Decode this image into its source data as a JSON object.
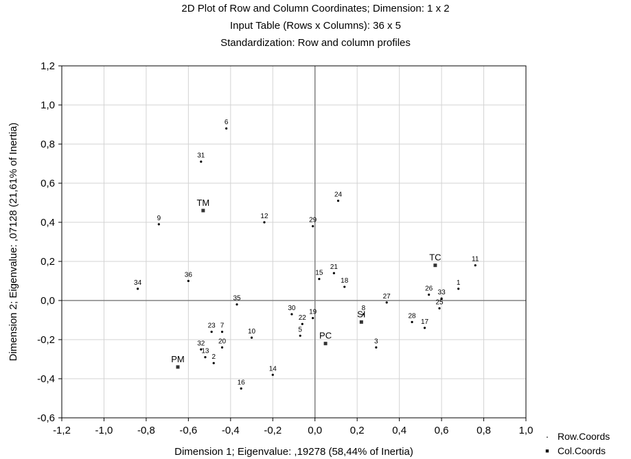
{
  "chart_data": {
    "type": "scatter",
    "title_lines": [
      "2D Plot of Row and Column Coordinates; Dimension:  1 x  2",
      "Input Table (Rows x Columns): 36 x 5",
      "Standardization: Row and column profiles"
    ],
    "xlabel": "Dimension 1; Eigenvalue: ,19278 (58,44% of Inertia)",
    "ylabel": "Dimension 2; Eigenvalue: ,07128 (21,61% of Inertia)",
    "xlim": [
      -1.2,
      1.0
    ],
    "ylim": [
      -0.6,
      1.2
    ],
    "xticks": [
      "-1,2",
      "-1,0",
      "-0,8",
      "-0,6",
      "-0,4",
      "-0,2",
      "0,0",
      "0,2",
      "0,4",
      "0,6",
      "0,8",
      "1,0"
    ],
    "yticks": [
      "-0,6",
      "-0,4",
      "-0,2",
      "0,0",
      "0,2",
      "0,4",
      "0,6",
      "0,8",
      "1,0",
      "1,2"
    ],
    "grid": true,
    "legend_position": "bottom-right",
    "series": [
      {
        "name": "Row.Coords",
        "marker": "dot",
        "points": [
          {
            "label": "1",
            "x": 0.68,
            "y": 0.06
          },
          {
            "label": "2",
            "x": -0.48,
            "y": -0.32
          },
          {
            "label": "3",
            "x": 0.29,
            "y": -0.24
          },
          {
            "label": "5",
            "x": -0.07,
            "y": -0.18
          },
          {
            "label": "6",
            "x": -0.42,
            "y": 0.88
          },
          {
            "label": "7",
            "x": -0.44,
            "y": -0.16
          },
          {
            "label": "8",
            "x": 0.23,
            "y": -0.07
          },
          {
            "label": "9",
            "x": -0.74,
            "y": 0.39
          },
          {
            "label": "10",
            "x": -0.3,
            "y": -0.19
          },
          {
            "label": "11",
            "x": 0.76,
            "y": 0.18
          },
          {
            "label": "12",
            "x": -0.24,
            "y": 0.4
          },
          {
            "label": "13",
            "x": -0.52,
            "y": -0.29
          },
          {
            "label": "14",
            "x": -0.2,
            "y": -0.38
          },
          {
            "label": "15",
            "x": 0.02,
            "y": 0.11
          },
          {
            "label": "16",
            "x": -0.35,
            "y": -0.45
          },
          {
            "label": "17",
            "x": 0.52,
            "y": -0.14
          },
          {
            "label": "18",
            "x": 0.14,
            "y": 0.07
          },
          {
            "label": "19",
            "x": -0.01,
            "y": -0.09
          },
          {
            "label": "20",
            "x": -0.44,
            "y": -0.24
          },
          {
            "label": "21",
            "x": 0.09,
            "y": 0.14
          },
          {
            "label": "22",
            "x": -0.06,
            "y": -0.12
          },
          {
            "label": "23",
            "x": -0.49,
            "y": -0.16
          },
          {
            "label": "24",
            "x": 0.11,
            "y": 0.51
          },
          {
            "label": "25",
            "x": 0.59,
            "y": -0.04
          },
          {
            "label": "26",
            "x": 0.54,
            "y": 0.03
          },
          {
            "label": "27",
            "x": 0.34,
            "y": -0.01
          },
          {
            "label": "28",
            "x": 0.46,
            "y": -0.11
          },
          {
            "label": "29",
            "x": -0.01,
            "y": 0.38
          },
          {
            "label": "30",
            "x": -0.11,
            "y": -0.07
          },
          {
            "label": "31",
            "x": -0.54,
            "y": 0.71
          },
          {
            "label": "32",
            "x": -0.54,
            "y": -0.25
          },
          {
            "label": "33",
            "x": 0.6,
            "y": 0.01
          },
          {
            "label": "34",
            "x": -0.84,
            "y": 0.06
          },
          {
            "label": "35",
            "x": -0.37,
            "y": -0.02
          },
          {
            "label": "36",
            "x": -0.6,
            "y": 0.1
          }
        ]
      },
      {
        "name": "Col.Coords",
        "marker": "square",
        "points": [
          {
            "label": "TM",
            "x": -0.53,
            "y": 0.46
          },
          {
            "label": "TC",
            "x": 0.57,
            "y": 0.18
          },
          {
            "label": "PC",
            "x": 0.05,
            "y": -0.22
          },
          {
            "label": "PM",
            "x": -0.65,
            "y": -0.34
          },
          {
            "label": "SI",
            "x": 0.22,
            "y": -0.11
          }
        ]
      }
    ]
  },
  "legend": {
    "row_symbol": "·",
    "col_symbol": "■"
  },
  "colors": {
    "grid": "#d3d3d3",
    "frame": "#000000",
    "zero_lines": "#808080",
    "marker": "#000000"
  }
}
